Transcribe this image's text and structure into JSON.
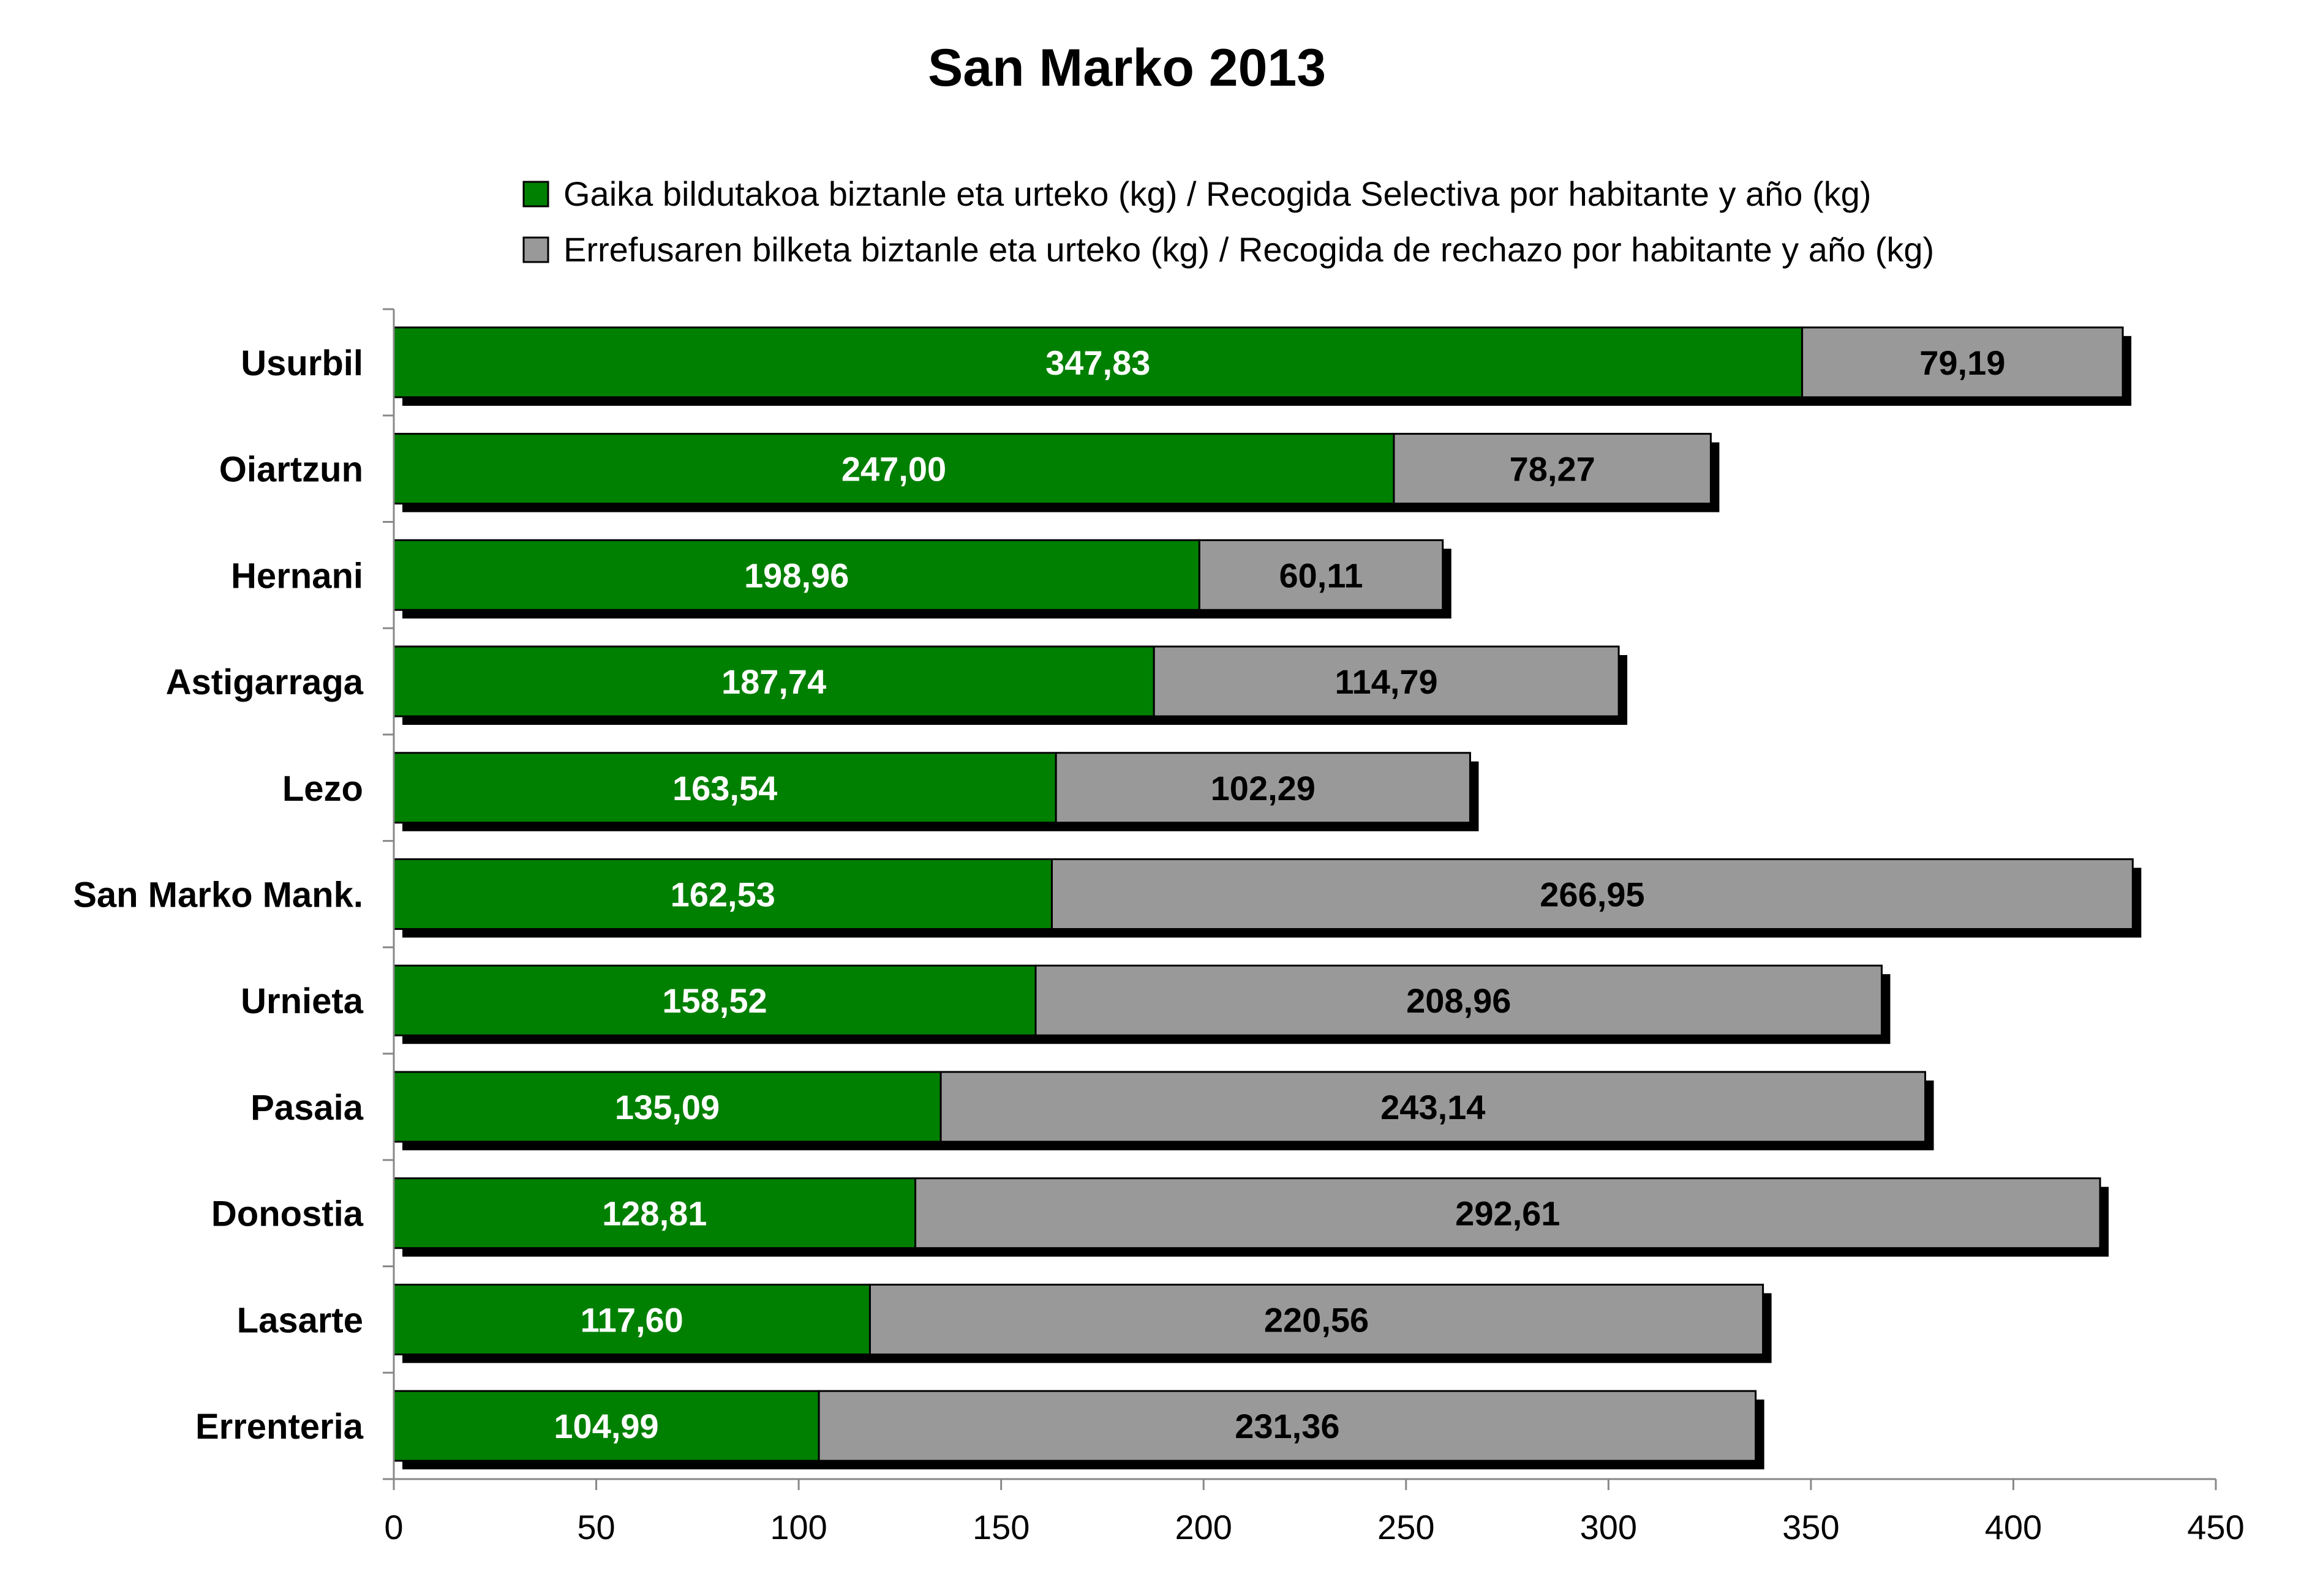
{
  "chart_data": {
    "type": "bar",
    "orientation": "horizontal",
    "stacked": true,
    "title": "San Marko 2013",
    "xlim": [
      0,
      450
    ],
    "xticks": [
      0,
      50,
      100,
      150,
      200,
      250,
      300,
      350,
      400,
      450
    ],
    "grid": false,
    "legend_position": "top",
    "categories": [
      "Usurbil",
      "Oiartzun",
      "Hernani",
      "Astigarraga",
      "Lezo",
      "San Marko Mank.",
      "Urnieta",
      "Pasaia",
      "Donostia",
      "Lasarte",
      "Errenteria"
    ],
    "series": [
      {
        "name": "Gaika bildutakoa biztanle eta urteko (kg) / Recogida Selectiva por habitante y año (kg)",
        "color": "#008000",
        "label_color": "#ffffff",
        "values": [
          347.83,
          247.0,
          198.96,
          187.74,
          163.54,
          162.53,
          158.52,
          135.09,
          128.81,
          117.6,
          104.99
        ],
        "labels": [
          "347,83",
          "247,00",
          "198,96",
          "187,74",
          "163,54",
          "162,53",
          "158,52",
          "135,09",
          "128,81",
          "117,60",
          "104,99"
        ]
      },
      {
        "name": "Errefusaren bilketa biztanle eta urteko (kg) / Recogida de rechazo por habitante y año (kg)",
        "color": "#999999",
        "label_color": "#000000",
        "values": [
          79.19,
          78.27,
          60.11,
          114.79,
          102.29,
          266.95,
          208.96,
          243.14,
          292.61,
          220.56,
          231.36
        ],
        "labels": [
          "79,19",
          "78,27",
          "60,11",
          "114,79",
          "102,29",
          "266,95",
          "208,96",
          "243,14",
          "292,61",
          "220,56",
          "231,36"
        ]
      }
    ]
  }
}
